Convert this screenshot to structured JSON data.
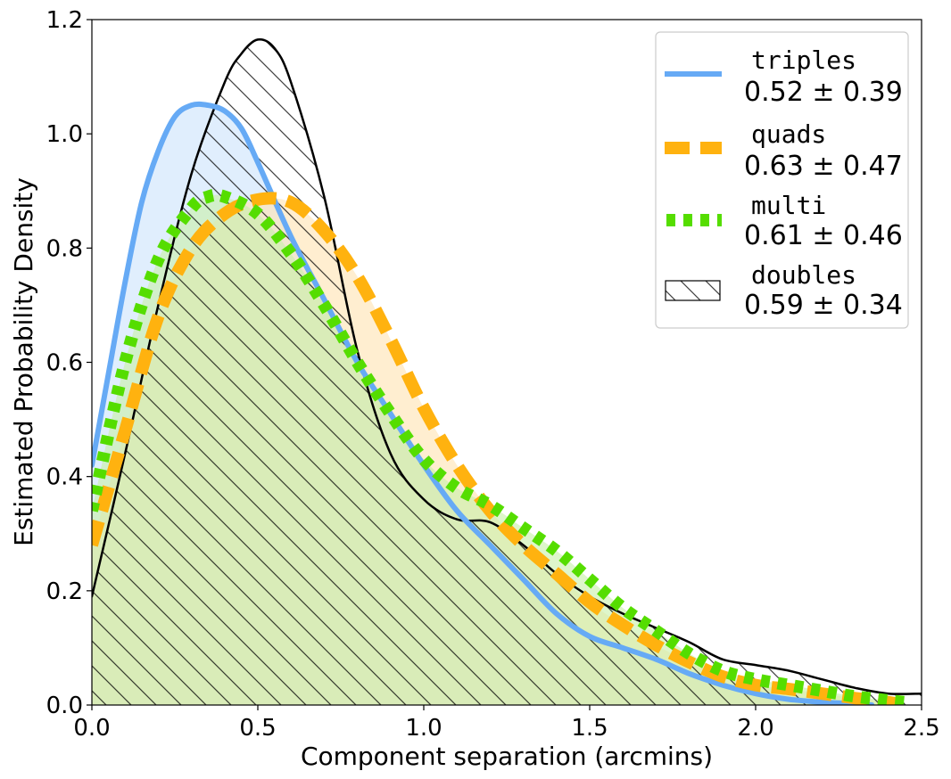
{
  "chart_data": {
    "type": "line",
    "title": "",
    "xlabel": "Component separation (arcmins)",
    "ylabel": "Estimated Probability Density",
    "xlim": [
      0.0,
      2.5
    ],
    "ylim": [
      0.0,
      1.2
    ],
    "xticks": [
      "0.0",
      "0.5",
      "1.0",
      "1.5",
      "2.0",
      "2.5"
    ],
    "yticks": [
      "0.0",
      "0.2",
      "0.4",
      "0.6",
      "0.8",
      "1.0",
      "1.2"
    ],
    "legend_position": "upper right",
    "series": [
      {
        "name": "doubles",
        "stat": "0.59 ± 0.34",
        "style": "hatched",
        "color": "#000000",
        "x": [
          0.0,
          0.1,
          0.2,
          0.3,
          0.4,
          0.45,
          0.5,
          0.55,
          0.6,
          0.7,
          0.8,
          0.9,
          1.0,
          1.1,
          1.2,
          1.3,
          1.4,
          1.5,
          1.6,
          1.7,
          1.8,
          1.9,
          2.0,
          2.1,
          2.2,
          2.3,
          2.4,
          2.5
        ],
        "y": [
          0.19,
          0.44,
          0.7,
          0.93,
          1.09,
          1.14,
          1.165,
          1.15,
          1.09,
          0.89,
          0.62,
          0.44,
          0.36,
          0.325,
          0.32,
          0.28,
          0.23,
          0.19,
          0.16,
          0.135,
          0.11,
          0.08,
          0.07,
          0.06,
          0.045,
          0.03,
          0.02,
          0.02
        ]
      },
      {
        "name": "triples",
        "stat": "0.52 ± 0.39",
        "style": "solid",
        "color": "#66aaf5",
        "fill": "#cce3fb",
        "x": [
          0.0,
          0.05,
          0.1,
          0.15,
          0.2,
          0.25,
          0.3,
          0.35,
          0.4,
          0.45,
          0.5,
          0.6,
          0.7,
          0.8,
          0.9,
          1.0,
          1.1,
          1.2,
          1.3,
          1.4,
          1.5,
          1.6,
          1.7,
          1.8,
          1.9,
          2.0,
          2.1,
          2.2,
          2.3,
          2.35
        ],
        "y": [
          0.42,
          0.58,
          0.74,
          0.88,
          0.97,
          1.03,
          1.05,
          1.05,
          1.04,
          1.01,
          0.95,
          0.82,
          0.71,
          0.6,
          0.51,
          0.42,
          0.34,
          0.28,
          0.22,
          0.16,
          0.12,
          0.1,
          0.08,
          0.055,
          0.035,
          0.02,
          0.01,
          0.005,
          0.002,
          0.0
        ]
      },
      {
        "name": "quads",
        "stat": "0.63 ± 0.47",
        "style": "dashed",
        "color": "#ffb20f",
        "fill": "#ffe3b0",
        "x": [
          0.0,
          0.1,
          0.2,
          0.3,
          0.4,
          0.5,
          0.6,
          0.7,
          0.8,
          0.9,
          1.0,
          1.1,
          1.2,
          1.3,
          1.4,
          1.5,
          1.6,
          1.7,
          1.8,
          1.9,
          2.0,
          2.1,
          2.2,
          2.3,
          2.4,
          2.45
        ],
        "y": [
          0.28,
          0.48,
          0.68,
          0.8,
          0.86,
          0.885,
          0.88,
          0.83,
          0.75,
          0.64,
          0.52,
          0.42,
          0.34,
          0.28,
          0.23,
          0.18,
          0.14,
          0.105,
          0.075,
          0.05,
          0.035,
          0.028,
          0.02,
          0.012,
          0.005,
          0.0
        ]
      },
      {
        "name": "multi",
        "stat": "0.61 ± 0.46",
        "style": "dotted",
        "color": "#55dd00",
        "fill": "#c8f0a8",
        "x": [
          0.0,
          0.1,
          0.2,
          0.3,
          0.35,
          0.4,
          0.5,
          0.6,
          0.7,
          0.8,
          0.9,
          1.0,
          1.1,
          1.2,
          1.3,
          1.4,
          1.5,
          1.6,
          1.7,
          1.8,
          1.9,
          2.0,
          2.1,
          2.2,
          2.3,
          2.4,
          2.45
        ],
        "y": [
          0.34,
          0.6,
          0.78,
          0.87,
          0.89,
          0.89,
          0.86,
          0.79,
          0.7,
          0.6,
          0.51,
          0.43,
          0.38,
          0.35,
          0.31,
          0.27,
          0.22,
          0.17,
          0.13,
          0.09,
          0.06,
          0.045,
          0.035,
          0.025,
          0.015,
          0.008,
          0.005
        ]
      }
    ]
  }
}
